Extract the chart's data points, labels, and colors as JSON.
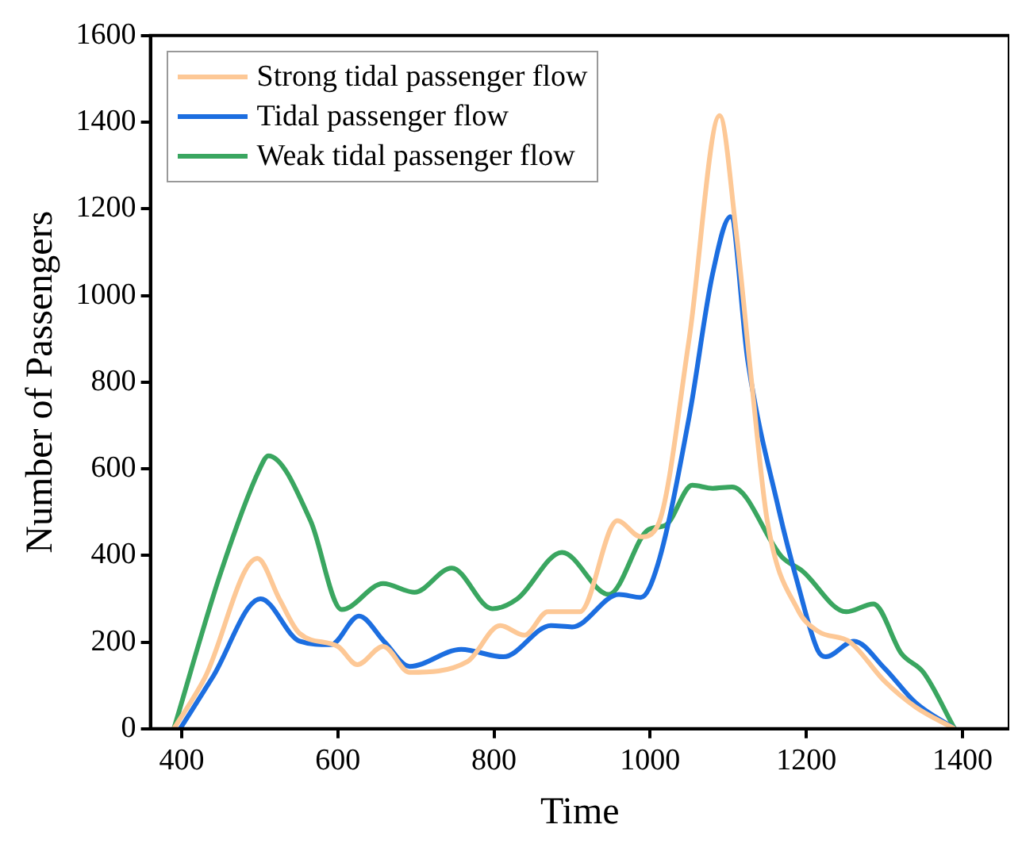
{
  "chart_data": {
    "type": "line",
    "xlabel": "Time",
    "ylabel": "Number of Passengers",
    "xlim": [
      360,
      1460
    ],
    "xticks": [
      400,
      600,
      800,
      1000,
      1200,
      1400
    ],
    "ylim": [
      0,
      1600
    ],
    "yticks": [
      0,
      200,
      400,
      600,
      800,
      1000,
      1200,
      1400,
      1600
    ],
    "legend": "top left",
    "marker": "none",
    "line_style": "solid",
    "series": [
      {
        "name": "Strong tidal passenger flow",
        "color": "#fdc896",
        "x": [
          390,
          430,
          497,
          525,
          551,
          600,
          625,
          658,
          692,
          766,
          808,
          839,
          869,
          910,
          958,
          988,
          1010,
          1050,
          1089,
          1110,
          1130,
          1150,
          1189,
          1215,
          1256,
          1300,
          1340,
          1390
        ],
        "values": [
          0,
          119,
          393,
          300,
          220,
          190,
          148,
          190,
          130,
          155,
          238,
          216,
          270,
          270,
          480,
          443,
          470,
          900,
          1415,
          1150,
          800,
          480,
          275,
          225,
          200,
          110,
          50,
          0
        ]
      },
      {
        "name": "Tidal passenger flow",
        "color": "#1c6ee0",
        "x": [
          398,
          440,
          501,
          551,
          591,
          627,
          660,
          692,
          758,
          812,
          873,
          900,
          960,
          988,
          1010,
          1050,
          1080,
          1103,
          1125,
          1165,
          1189,
          1215,
          1225,
          1261,
          1300,
          1340,
          1390
        ],
        "values": [
          0,
          120,
          300,
          202,
          194,
          260,
          200,
          144,
          183,
          166,
          238,
          235,
          310,
          303,
          380,
          720,
          1050,
          1182,
          850,
          504,
          335,
          180,
          166,
          202,
          140,
          60,
          0
        ]
      },
      {
        "name": "Weak tidal passenger flow",
        "color": "#3aa660",
        "x": [
          390,
          450,
          500,
          511,
          565,
          605,
          658,
          698,
          746,
          798,
          830,
          887,
          947,
          998,
          1020,
          1054,
          1080,
          1105,
          1169,
          1195,
          1251,
          1286,
          1322,
          1350,
          1390
        ],
        "values": [
          0,
          360,
          600,
          630,
          480,
          275,
          335,
          315,
          371,
          277,
          300,
          407,
          310,
          460,
          470,
          562,
          555,
          558,
          396,
          364,
          270,
          288,
          173,
          130,
          0
        ]
      }
    ]
  }
}
